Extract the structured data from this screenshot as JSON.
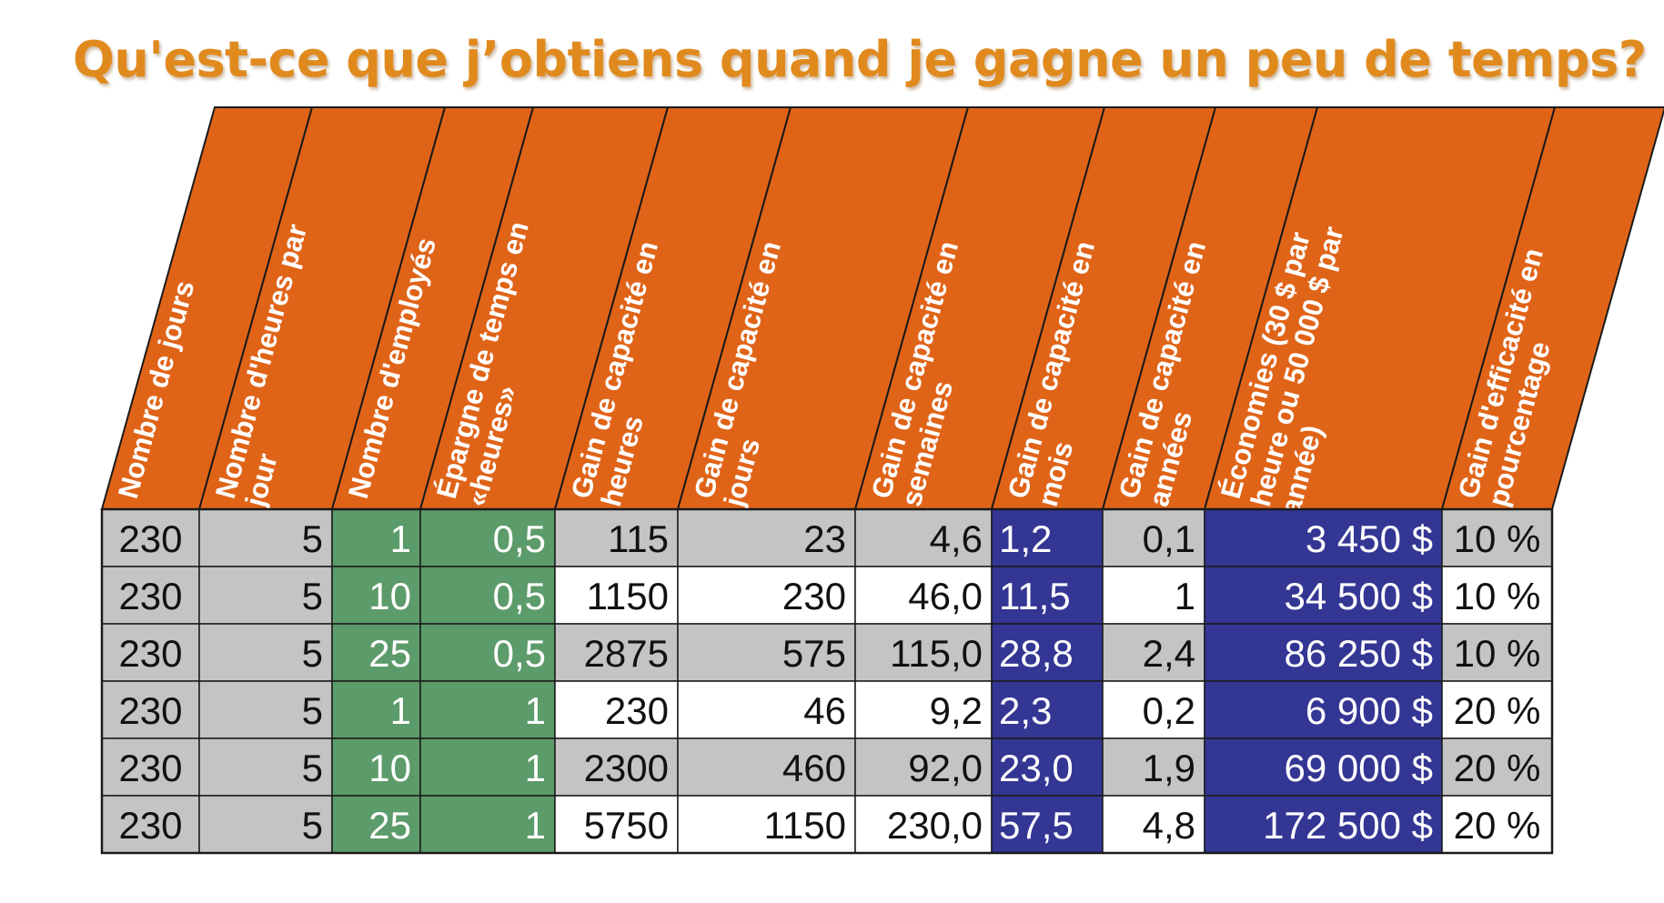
{
  "title": "Qu'est-ce que j’obtiens quand je gagne un peu de temps?",
  "colors": {
    "header_orange": "#e06418",
    "gray": "#c4c4c4",
    "green": "#5c9b6a",
    "navy": "#343694",
    "white": "#ffffff",
    "title_orange": "#e08a1e",
    "text_dark": "#111111",
    "text_light": "#ffffff"
  },
  "columns": [
    {
      "key": "jours",
      "label_lines": [
        "Nombre de jours"
      ]
    },
    {
      "key": "heures_par_jour",
      "label_lines": [
        "Nombre d'heures par",
        "jour"
      ]
    },
    {
      "key": "employes",
      "label_lines": [
        "Nombre d'employés"
      ]
    },
    {
      "key": "epargne",
      "label_lines": [
        "Épargne de temps en",
        "«heures»"
      ]
    },
    {
      "key": "gain_heures",
      "label_lines": [
        "Gain de capacité en",
        "heures"
      ]
    },
    {
      "key": "gain_jours",
      "label_lines": [
        "Gain de capacité en",
        "jours"
      ]
    },
    {
      "key": "gain_semaines",
      "label_lines": [
        "Gain de capacité en",
        "semaines"
      ]
    },
    {
      "key": "gain_mois",
      "label_lines": [
        "Gain de capacité en",
        "mois"
      ]
    },
    {
      "key": "gain_annees",
      "label_lines": [
        "Gain de capacité en",
        "années"
      ]
    },
    {
      "key": "economies",
      "label_lines": [
        "Économies (30 $ par",
        "heure ou 50 000 $ par",
        "année)"
      ]
    },
    {
      "key": "efficacite",
      "label_lines": [
        "Gain d'efficacité en",
        "pourcentage"
      ]
    }
  ],
  "rows": [
    [
      "230",
      "5",
      "1",
      "0,5",
      "115",
      "23",
      "4,6",
      "1,2",
      "0,1",
      "3 450 $",
      "10 %"
    ],
    [
      "230",
      "5",
      "10",
      "0,5",
      "1150",
      "230",
      "46,0",
      "11,5",
      "1",
      "34 500 $",
      "10 %"
    ],
    [
      "230",
      "5",
      "25",
      "0,5",
      "2875",
      "575",
      "115,0",
      "28,8",
      "2,4",
      "86 250 $",
      "10 %"
    ],
    [
      "230",
      "5",
      "1",
      "1",
      "230",
      "46",
      "9,2",
      "2,3",
      "0,2",
      "6 900 $",
      "20 %"
    ],
    [
      "230",
      "5",
      "10",
      "1",
      "2300",
      "460",
      "92,0",
      "23,0",
      "1,9",
      "69 000 $",
      "20 %"
    ],
    [
      "230",
      "5",
      "25",
      "1",
      "5750",
      "1150",
      "230,0",
      "57,5",
      "4,8",
      "172 500 $",
      "20 %"
    ]
  ],
  "cell_fills": [
    [
      "gray",
      "gray",
      "green",
      "green",
      "gray",
      "gray",
      "gray",
      "navy",
      "gray",
      "navy",
      "gray"
    ],
    [
      "gray",
      "gray",
      "green",
      "green",
      "white",
      "white",
      "white",
      "navy",
      "white",
      "navy",
      "white"
    ],
    [
      "gray",
      "gray",
      "green",
      "green",
      "gray",
      "gray",
      "gray",
      "navy",
      "gray",
      "navy",
      "gray"
    ],
    [
      "gray",
      "gray",
      "green",
      "green",
      "white",
      "white",
      "white",
      "navy",
      "white",
      "navy",
      "white"
    ],
    [
      "gray",
      "gray",
      "green",
      "green",
      "gray",
      "gray",
      "gray",
      "navy",
      "gray",
      "navy",
      "gray"
    ],
    [
      "gray",
      "gray",
      "green",
      "green",
      "white",
      "white",
      "white",
      "navy",
      "white",
      "navy",
      "white"
    ]
  ],
  "cell_align": [
    "center",
    "right",
    "right",
    "right",
    "right",
    "right",
    "right",
    "left",
    "right",
    "right",
    "center"
  ]
}
